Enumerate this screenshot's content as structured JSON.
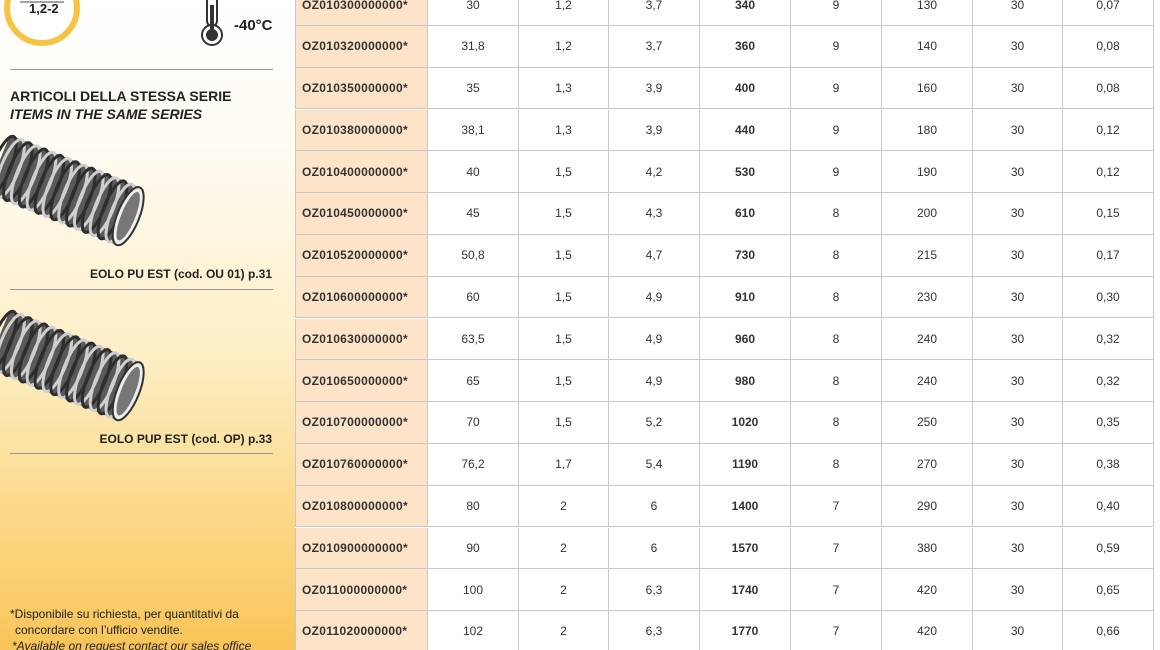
{
  "badge": {
    "label": "1,2-2"
  },
  "temperature": {
    "label": "-40°C"
  },
  "series_section": {
    "title_it": "ARTICOLI DELLA STESSA SERIE",
    "title_en": "ITEMS IN THE SAME SERIES",
    "items": [
      {
        "caption": "EOLO PU EST (cod. OU 01) p.31"
      },
      {
        "caption": "EOLO PUP EST (cod. OP) p.33"
      }
    ]
  },
  "footnote": {
    "lines": [
      "*Disponibile su richiesta, per quantitativi da",
      "concordare con l’ufficio vendite.",
      "*Available on request contact our sales office"
    ]
  },
  "table": {
    "rows": [
      [
        "OZ010300000000*",
        "30",
        "1,2",
        "3,7",
        "340",
        "9",
        "130",
        "30",
        "0,07"
      ],
      [
        "OZ010320000000*",
        "31,8",
        "1,2",
        "3,7",
        "360",
        "9",
        "140",
        "30",
        "0,08"
      ],
      [
        "OZ010350000000*",
        "35",
        "1,3",
        "3,9",
        "400",
        "9",
        "160",
        "30",
        "0,08"
      ],
      [
        "OZ010380000000*",
        "38,1",
        "1,3",
        "3,9",
        "440",
        "9",
        "180",
        "30",
        "0,12"
      ],
      [
        "OZ010400000000*",
        "40",
        "1,5",
        "4,2",
        "530",
        "9",
        "190",
        "30",
        "0,12"
      ],
      [
        "OZ010450000000*",
        "45",
        "1,5",
        "4,3",
        "610",
        "8",
        "200",
        "30",
        "0,15"
      ],
      [
        "OZ010520000000*",
        "50,8",
        "1,5",
        "4,7",
        "730",
        "8",
        "215",
        "30",
        "0,17"
      ],
      [
        "OZ010600000000*",
        "60",
        "1,5",
        "4,9",
        "910",
        "8",
        "230",
        "30",
        "0,30"
      ],
      [
        "OZ010630000000*",
        "63,5",
        "1,5",
        "4,9",
        "960",
        "8",
        "240",
        "30",
        "0,32"
      ],
      [
        "OZ010650000000*",
        "65",
        "1,5",
        "4,9",
        "980",
        "8",
        "240",
        "30",
        "0,32"
      ],
      [
        "OZ010700000000*",
        "70",
        "1,5",
        "5,2",
        "1020",
        "8",
        "250",
        "30",
        "0,35"
      ],
      [
        "OZ010760000000*",
        "76,2",
        "1,7",
        "5,4",
        "1190",
        "8",
        "270",
        "30",
        "0,38"
      ],
      [
        "OZ010800000000*",
        "80",
        "2",
        "6",
        "1400",
        "7",
        "290",
        "30",
        "0,40"
      ],
      [
        "OZ010900000000*",
        "90",
        "2",
        "6",
        "1570",
        "7",
        "380",
        "30",
        "0,59"
      ],
      [
        "OZ011000000000*",
        "100",
        "2",
        "6,3",
        "1740",
        "7",
        "420",
        "30",
        "0,65"
      ],
      [
        "OZ011020000000*",
        "102",
        "2",
        "6,3",
        "1770",
        "7",
        "420",
        "30",
        "0,66"
      ]
    ]
  }
}
